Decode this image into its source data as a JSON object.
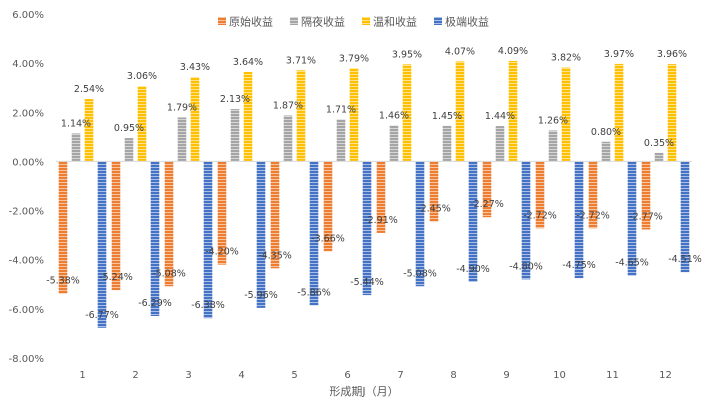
{
  "chart_data": {
    "type": "bar",
    "title": "",
    "xlabel": "形成期J（月）",
    "ylabel": "",
    "ylim": [
      -8,
      6
    ],
    "ytick_step": 2,
    "ytick_decimals": 2,
    "y_unit": "%",
    "grid": false,
    "legend_position": "top-right",
    "categories": [
      "1",
      "2",
      "3",
      "4",
      "5",
      "6",
      "7",
      "8",
      "9",
      "10",
      "11",
      "12"
    ],
    "series": [
      {
        "name": "原始收益",
        "color": "#ED7D31",
        "values": [
          -5.38,
          -5.24,
          -5.08,
          -4.2,
          -4.35,
          -3.66,
          -2.91,
          -2.45,
          -2.27,
          -2.72,
          -2.72,
          -2.77
        ]
      },
      {
        "name": "隔夜收益",
        "color": "#A5A5A5",
        "values": [
          1.14,
          0.95,
          1.79,
          2.13,
          1.87,
          1.71,
          1.46,
          1.45,
          1.44,
          1.26,
          0.8,
          0.35
        ]
      },
      {
        "name": "温和收益",
        "color": "#FFC000",
        "values": [
          2.54,
          3.06,
          3.43,
          3.64,
          3.71,
          3.79,
          3.95,
          4.07,
          4.09,
          3.82,
          3.97,
          3.96
        ]
      },
      {
        "name": "极端收益",
        "color": "#4472C4",
        "values": [
          -6.77,
          -6.29,
          -6.38,
          -5.96,
          -5.86,
          -5.44,
          -5.08,
          -4.9,
          -4.8,
          -4.75,
          -4.65,
          -4.51
        ]
      }
    ]
  }
}
